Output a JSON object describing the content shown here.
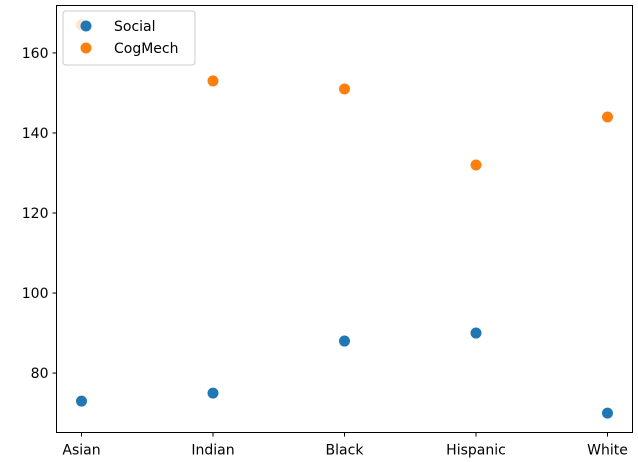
{
  "chart_data": {
    "type": "scatter",
    "categories": [
      "Asian",
      "Indian",
      "Black",
      "Hispanic",
      "White"
    ],
    "series": [
      {
        "name": "Social",
        "values": [
          73,
          75,
          88,
          90,
          70
        ],
        "color": "#1f77b4"
      },
      {
        "name": "CogMech",
        "values": [
          167,
          153,
          151,
          132,
          144
        ],
        "color": "#ff7f0e"
      }
    ],
    "yticks": [
      80,
      100,
      120,
      140,
      160
    ],
    "ylim": [
      65.15,
      171.85
    ],
    "grid": false,
    "legend_position": "top-left",
    "title": "",
    "xlabel": "",
    "ylabel": ""
  }
}
